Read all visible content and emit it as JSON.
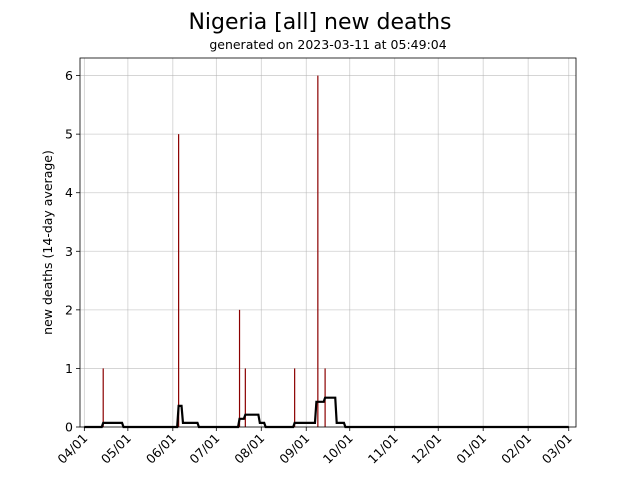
{
  "chart_data": {
    "type": "bar",
    "title": "Nigeria [all] new deaths",
    "subtitle": "generated on 2023-03-11 at 05:49:04",
    "xlabel": "",
    "ylabel": "new deaths (14-day average)",
    "xlim": [
      "2022-03-29",
      "2023-03-06"
    ],
    "ylim": [
      0,
      6.3
    ],
    "yticks": [
      0,
      1,
      2,
      3,
      4,
      5,
      6
    ],
    "xticks": [
      {
        "date": "2022-04-01",
        "label": "04/01"
      },
      {
        "date": "2022-05-01",
        "label": "05/01"
      },
      {
        "date": "2022-06-01",
        "label": "06/01"
      },
      {
        "date": "2022-07-01",
        "label": "07/01"
      },
      {
        "date": "2022-08-01",
        "label": "08/01"
      },
      {
        "date": "2022-09-01",
        "label": "09/01"
      },
      {
        "date": "2022-10-01",
        "label": "10/01"
      },
      {
        "date": "2022-11-01",
        "label": "11/01"
      },
      {
        "date": "2022-12-01",
        "label": "12/01"
      },
      {
        "date": "2023-01-01",
        "label": "01/01"
      },
      {
        "date": "2023-02-01",
        "label": "02/01"
      },
      {
        "date": "2023-03-01",
        "label": "03/01"
      }
    ],
    "grid": true,
    "series": [
      {
        "kind": "bar",
        "color": "#8b0000",
        "points": [
          {
            "x": "2022-04-14",
            "y": 1
          },
          {
            "x": "2022-06-05",
            "y": 5
          },
          {
            "x": "2022-07-17",
            "y": 2
          },
          {
            "x": "2022-07-21",
            "y": 1
          },
          {
            "x": "2022-08-24",
            "y": 1
          },
          {
            "x": "2022-09-09",
            "y": 6
          },
          {
            "x": "2022-09-14",
            "y": 1
          }
        ]
      },
      {
        "kind": "line",
        "color": "#000000",
        "points": [
          {
            "x": "2022-04-01",
            "y": 0
          },
          {
            "x": "2022-04-13",
            "y": 0
          },
          {
            "x": "2022-04-14",
            "y": 0.07
          },
          {
            "x": "2022-04-27",
            "y": 0.07
          },
          {
            "x": "2022-04-28",
            "y": 0
          },
          {
            "x": "2022-06-04",
            "y": 0
          },
          {
            "x": "2022-06-05",
            "y": 0.36
          },
          {
            "x": "2022-06-07",
            "y": 0.36
          },
          {
            "x": "2022-06-08",
            "y": 0.07
          },
          {
            "x": "2022-06-18",
            "y": 0.07
          },
          {
            "x": "2022-06-19",
            "y": 0
          },
          {
            "x": "2022-07-16",
            "y": 0
          },
          {
            "x": "2022-07-17",
            "y": 0.14
          },
          {
            "x": "2022-07-20",
            "y": 0.14
          },
          {
            "x": "2022-07-21",
            "y": 0.21
          },
          {
            "x": "2022-07-30",
            "y": 0.21
          },
          {
            "x": "2022-07-31",
            "y": 0.07
          },
          {
            "x": "2022-08-03",
            "y": 0.07
          },
          {
            "x": "2022-08-04",
            "y": 0
          },
          {
            "x": "2022-08-23",
            "y": 0
          },
          {
            "x": "2022-08-24",
            "y": 0.07
          },
          {
            "x": "2022-09-07",
            "y": 0.07
          },
          {
            "x": "2022-09-08",
            "y": 0.43
          },
          {
            "x": "2022-09-13",
            "y": 0.43
          },
          {
            "x": "2022-09-14",
            "y": 0.5
          },
          {
            "x": "2022-09-21",
            "y": 0.5
          },
          {
            "x": "2022-09-22",
            "y": 0.07
          },
          {
            "x": "2022-09-27",
            "y": 0.07
          },
          {
            "x": "2022-09-28",
            "y": 0
          },
          {
            "x": "2023-03-01",
            "y": 0
          }
        ]
      }
    ]
  }
}
